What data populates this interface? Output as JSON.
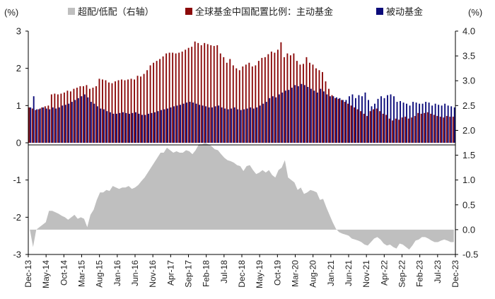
{
  "chart_data": {
    "type": "bar",
    "left_axis_unit": "(%)",
    "right_axis_unit": "(%)",
    "left_ylim": [
      -3,
      3
    ],
    "right_ylim": [
      -0.5,
      4.0
    ],
    "left_ticks": [
      "3",
      "2",
      "1",
      "0",
      "-1",
      "-2",
      "-3"
    ],
    "right_ticks": [
      "4.0",
      "3.5",
      "3.0",
      "2.5",
      "2.0",
      "1.5",
      "1.0",
      "0.5",
      "0.0",
      "-0.5"
    ],
    "x_tick_labels": [
      "Dec-13",
      "May-14",
      "Oct-14",
      "Mar-15",
      "Aug-15",
      "Jan-16",
      "Jun-16",
      "Nov-16",
      "Apr-17",
      "Sep-17",
      "Feb-18",
      "Jul-18",
      "Dec-18",
      "May-19",
      "Oct-19",
      "Mar-20",
      "Aug-20",
      "Jan-21",
      "Jun-21",
      "Nov-21",
      "Apr-22",
      "Sep-22",
      "Feb-23",
      "Jul-23",
      "Dec-23"
    ],
    "series": [
      {
        "name": "超配/低配（右轴）",
        "axis": "right",
        "kind": "area",
        "color": "#bfbfbf",
        "values": [
          0.0,
          -0.35,
          0.0,
          0.05,
          0.1,
          0.15,
          0.38,
          0.38,
          0.35,
          0.32,
          0.28,
          0.25,
          0.2,
          0.25,
          0.3,
          0.22,
          0.25,
          0.22,
          0.05,
          0.3,
          0.4,
          0.6,
          0.75,
          0.75,
          0.8,
          0.78,
          0.88,
          0.85,
          0.82,
          0.85,
          0.85,
          0.88,
          0.82,
          0.85,
          0.9,
          0.98,
          1.05,
          1.15,
          1.25,
          1.35,
          1.45,
          1.55,
          1.55,
          1.65,
          1.6,
          1.55,
          1.58,
          1.55,
          1.55,
          1.6,
          1.58,
          1.52,
          1.6,
          1.72,
          1.72,
          1.75,
          1.72,
          1.68,
          1.62,
          1.6,
          1.52,
          1.45,
          1.4,
          1.38,
          1.35,
          1.3,
          1.28,
          1.18,
          1.28,
          1.3,
          1.2,
          1.12,
          1.15,
          1.2,
          1.15,
          1.2,
          1.1,
          1.05,
          1.2,
          1.25,
          1.4,
          1.05,
          1.0,
          0.95,
          0.8,
          0.85,
          0.72,
          0.75,
          0.8,
          0.78,
          0.75,
          0.6,
          0.62,
          0.45,
          0.3,
          0.15,
          0.02,
          -0.05,
          -0.08,
          -0.1,
          -0.12,
          -0.18,
          -0.2,
          -0.22,
          -0.25,
          -0.3,
          -0.32,
          -0.25,
          -0.18,
          -0.15,
          -0.2,
          -0.28,
          -0.32,
          -0.3,
          -0.35,
          -0.38,
          -0.28,
          -0.3,
          -0.35,
          -0.4,
          -0.32,
          -0.22,
          -0.2,
          -0.15,
          -0.15,
          -0.18,
          -0.22,
          -0.25,
          -0.25,
          -0.22,
          -0.2,
          -0.22,
          -0.25,
          -0.25
        ]
      },
      {
        "name": "全球基金中国配置比例：主动基金",
        "axis": "left",
        "kind": "bar",
        "color": "#8b0a0a",
        "values": [
          0.95,
          0.92,
          0.88,
          0.9,
          0.95,
          0.98,
          1.0,
          1.3,
          1.32,
          1.3,
          1.32,
          1.35,
          1.4,
          1.38,
          1.45,
          1.48,
          1.52,
          1.52,
          1.55,
          1.45,
          1.48,
          1.52,
          1.72,
          1.7,
          1.68,
          1.62,
          1.6,
          1.65,
          1.68,
          1.7,
          1.68,
          1.7,
          1.72,
          1.7,
          1.8,
          1.78,
          1.85,
          1.95,
          2.08,
          2.15,
          2.2,
          2.25,
          2.32,
          2.4,
          2.42,
          2.42,
          2.4,
          2.42,
          2.45,
          2.5,
          2.55,
          2.58,
          2.72,
          2.68,
          2.62,
          2.68,
          2.65,
          2.62,
          2.6,
          2.62,
          2.4,
          2.3,
          2.15,
          2.25,
          2.08,
          2.0,
          1.95,
          2.05,
          2.1,
          2.15,
          2.05,
          2.08,
          2.2,
          2.28,
          2.3,
          2.38,
          2.45,
          2.42,
          2.5,
          2.7,
          2.3,
          2.4,
          2.35,
          2.4,
          2.2,
          2.1,
          2.12,
          2.3,
          2.15,
          2.1,
          2.0,
          1.95,
          1.9,
          1.65,
          1.45,
          1.28,
          1.2,
          1.18,
          1.15,
          1.1,
          1.05,
          1.0,
          0.95,
          0.9,
          0.85,
          0.78,
          0.72,
          0.85,
          0.9,
          0.92,
          0.85,
          0.78,
          0.75,
          0.65,
          0.6,
          0.65,
          0.62,
          0.68,
          0.7,
          0.65,
          0.68,
          0.72,
          0.8,
          0.78,
          0.8,
          0.82,
          0.78,
          0.75,
          0.72,
          0.7,
          0.68,
          0.72,
          0.7,
          0.7
        ]
      },
      {
        "name": "被动基金",
        "axis": "left",
        "kind": "bar",
        "color": "#0b0b7a",
        "values": [
          0.95,
          1.25,
          0.9,
          0.92,
          0.95,
          0.92,
          0.9,
          0.95,
          0.92,
          0.95,
          1.0,
          1.02,
          1.05,
          1.1,
          1.15,
          1.2,
          1.25,
          1.3,
          1.22,
          1.1,
          1.05,
          0.98,
          0.92,
          0.9,
          0.85,
          0.82,
          0.78,
          0.78,
          0.8,
          0.82,
          0.8,
          0.78,
          0.8,
          0.82,
          0.78,
          0.75,
          0.75,
          0.78,
          0.8,
          0.82,
          0.85,
          0.88,
          0.9,
          0.92,
          0.95,
          0.98,
          1.0,
          1.02,
          1.05,
          1.08,
          1.1,
          1.08,
          1.05,
          1.02,
          1.0,
          0.98,
          0.95,
          0.95,
          0.98,
          1.0,
          0.95,
          0.92,
          0.9,
          0.92,
          0.95,
          0.9,
          0.88,
          0.9,
          0.92,
          0.95,
          0.92,
          0.95,
          1.0,
          1.05,
          1.1,
          1.2,
          1.25,
          1.22,
          1.3,
          1.35,
          1.4,
          1.42,
          1.48,
          1.55,
          1.52,
          1.58,
          1.55,
          1.5,
          1.45,
          1.4,
          1.35,
          1.45,
          1.38,
          1.3,
          1.25,
          1.25,
          1.22,
          1.2,
          1.15,
          1.15,
          1.25,
          1.3,
          1.2,
          1.28,
          1.25,
          1.35,
          1.15,
          0.98,
          1.05,
          1.18,
          1.25,
          1.2,
          1.28,
          1.3,
          1.25,
          1.1,
          1.12,
          1.08,
          1.05,
          1.0,
          1.1,
          1.08,
          1.05,
          1.05,
          1.1,
          1.08,
          1.0,
          1.05,
          1.02,
          1.0,
          1.05,
          1.0,
          0.98,
          0.95
        ]
      }
    ]
  }
}
